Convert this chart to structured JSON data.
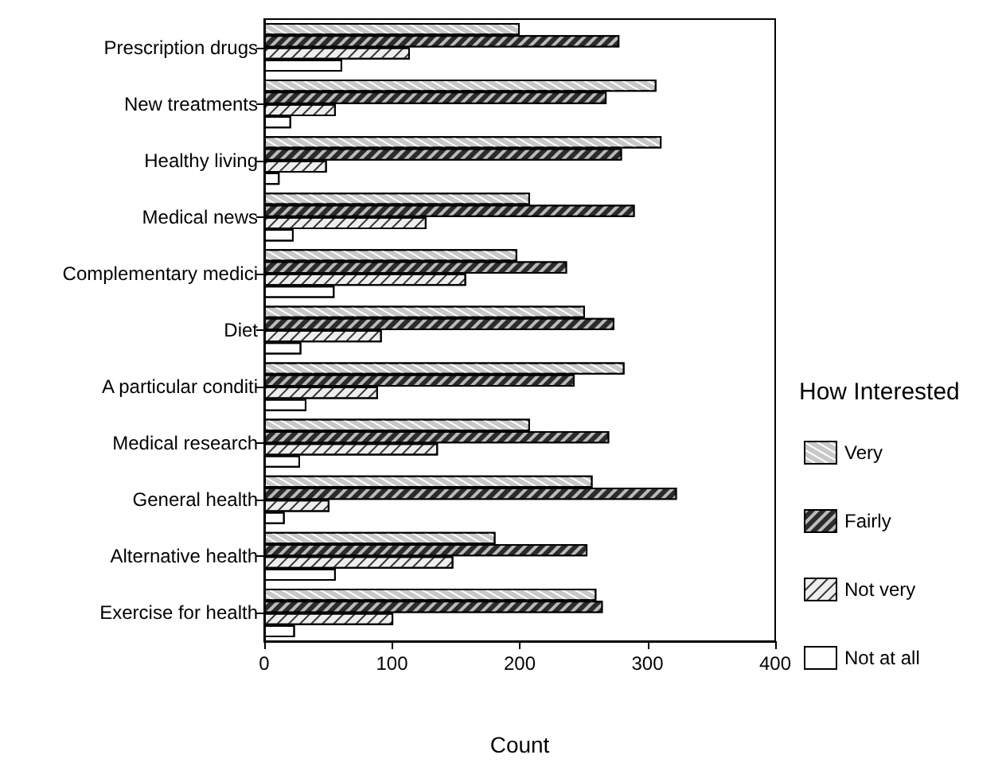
{
  "chart_data": {
    "type": "bar",
    "orientation": "horizontal",
    "xlabel": "Count",
    "legend_title": "How Interested",
    "legend": "right",
    "grid": false,
    "categories": [
      "Prescription drugs",
      "New treatments",
      "Healthy living",
      "Medical news",
      "Complementary medici",
      "Diet",
      "A particular conditi",
      "Medical research",
      "General health",
      "Alternative health",
      "Exercise for health"
    ],
    "xlim": [
      0,
      400
    ],
    "xticks": [
      0,
      100,
      200,
      300,
      400
    ],
    "series": [
      {
        "name": "Very",
        "color": "#c8c8c8",
        "values": [
          200,
          307,
          311,
          208,
          198,
          251,
          282,
          208,
          257,
          181,
          260
        ]
      },
      {
        "name": "Fairly",
        "color": "#2b2b2b",
        "values": [
          278,
          268,
          280,
          290,
          237,
          274,
          243,
          270,
          323,
          253,
          265
        ]
      },
      {
        "name": "Not very",
        "color": "#eeeeee",
        "values": [
          114,
          56,
          49,
          127,
          158,
          92,
          89,
          136,
          51,
          148,
          101
        ]
      },
      {
        "name": "Not at all",
        "color": "#ffffff",
        "values": [
          61,
          21,
          12,
          23,
          55,
          29,
          33,
          28,
          16,
          56,
          24
        ]
      }
    ]
  }
}
